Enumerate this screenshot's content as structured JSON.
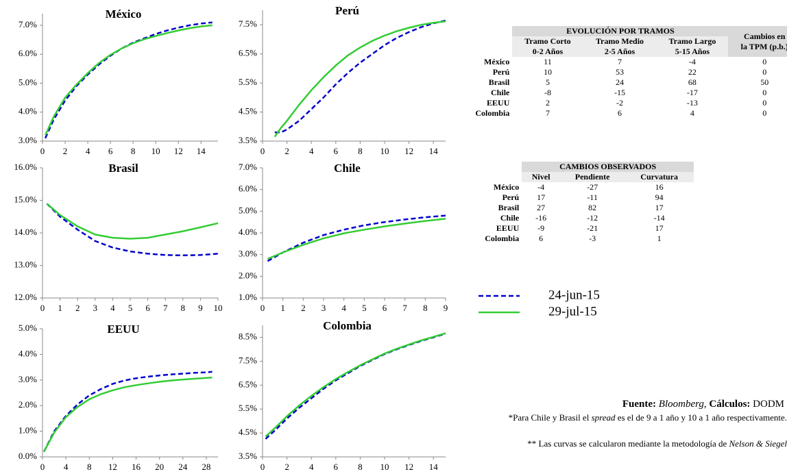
{
  "chart_data": [
    {
      "type": "line",
      "title": "México",
      "xlim": [
        0,
        15.5
      ],
      "xticks": [
        0,
        2,
        4,
        6,
        8,
        10,
        12,
        14
      ],
      "ylim": [
        3,
        7.4
      ],
      "yticks": [
        {
          "value": 3,
          "label": "3.0%"
        },
        {
          "value": 4,
          "label": "4.0%"
        },
        {
          "value": 5,
          "label": "5.0%"
        },
        {
          "value": 6,
          "label": "6.0%"
        },
        {
          "value": 7,
          "label": "7.0%"
        }
      ],
      "x": [
        0.25,
        1,
        2,
        3,
        4,
        5,
        6,
        7,
        8,
        9,
        10,
        11,
        12,
        13,
        14,
        15
      ],
      "series": [
        {
          "name": "24-jun-15",
          "color": "#0000cc",
          "dash": true,
          "values": [
            3.1,
            3.75,
            4.4,
            4.9,
            5.3,
            5.65,
            5.95,
            6.2,
            6.4,
            6.55,
            6.7,
            6.82,
            6.92,
            7.0,
            7.06,
            7.1
          ]
        },
        {
          "name": "29-jul-15",
          "color": "#33cc33",
          "dash": false,
          "values": [
            3.2,
            3.85,
            4.5,
            4.95,
            5.35,
            5.7,
            5.98,
            6.2,
            6.38,
            6.52,
            6.63,
            6.73,
            6.82,
            6.9,
            6.96,
            7.0
          ]
        }
      ]
    },
    {
      "type": "line",
      "title": "Perú",
      "xlim": [
        0,
        15
      ],
      "xticks": [
        0,
        2,
        4,
        6,
        8,
        10,
        12,
        14
      ],
      "ylim": [
        3.5,
        8.0
      ],
      "yticks": [
        {
          "value": 3.5,
          "label": "3.5%"
        },
        {
          "value": 4.5,
          "label": "4.5%"
        },
        {
          "value": 5.5,
          "label": "5.5%"
        },
        {
          "value": 6.5,
          "label": "6.5%"
        },
        {
          "value": 7.5,
          "label": "7.5%"
        }
      ],
      "x": [
        1,
        1.5,
        2,
        3,
        4,
        5,
        6,
        7,
        8,
        9,
        10,
        11,
        12,
        13,
        14,
        15
      ],
      "series": [
        {
          "name": "24-jun-15",
          "color": "#0000cc",
          "dash": true,
          "values": [
            3.8,
            3.8,
            3.9,
            4.2,
            4.6,
            5.0,
            5.45,
            5.85,
            6.2,
            6.5,
            6.8,
            7.05,
            7.25,
            7.42,
            7.55,
            7.65
          ]
        },
        {
          "name": "29-jul-15",
          "color": "#33cc33",
          "dash": false,
          "values": [
            3.65,
            3.95,
            4.2,
            4.75,
            5.25,
            5.7,
            6.1,
            6.45,
            6.72,
            6.95,
            7.13,
            7.28,
            7.4,
            7.5,
            7.57,
            7.62
          ]
        }
      ]
    },
    {
      "type": "line",
      "title": "Brasil",
      "xlim": [
        0,
        10
      ],
      "xticks": [
        0,
        1,
        2,
        3,
        4,
        5,
        6,
        7,
        8,
        9,
        10
      ],
      "ylim": [
        12,
        16
      ],
      "yticks": [
        {
          "value": 12,
          "label": "12.0%"
        },
        {
          "value": 13,
          "label": "13.0%"
        },
        {
          "value": 14,
          "label": "14.0%"
        },
        {
          "value": 15,
          "label": "15.0%"
        },
        {
          "value": 16,
          "label": "16.0%"
        }
      ],
      "x": [
        0.25,
        1,
        2,
        3,
        4,
        5,
        6,
        7,
        8,
        9,
        10
      ],
      "series": [
        {
          "name": "24-jun-15",
          "color": "#0000cc",
          "dash": true,
          "values": [
            14.9,
            14.5,
            14.1,
            13.75,
            13.55,
            13.43,
            13.36,
            13.32,
            13.31,
            13.32,
            13.36
          ]
        },
        {
          "name": "29-jul-15",
          "color": "#33cc33",
          "dash": false,
          "values": [
            14.9,
            14.55,
            14.2,
            13.95,
            13.85,
            13.82,
            13.85,
            13.95,
            14.05,
            14.17,
            14.3
          ]
        }
      ]
    },
    {
      "type": "line",
      "title": "Chile",
      "xlim": [
        0,
        9
      ],
      "xticks": [
        0,
        1,
        2,
        3,
        4,
        5,
        6,
        7,
        8,
        9
      ],
      "ylim": [
        1,
        7
      ],
      "yticks": [
        {
          "value": 1,
          "label": "1.0%"
        },
        {
          "value": 2,
          "label": "2.0%"
        },
        {
          "value": 3,
          "label": "3.0%"
        },
        {
          "value": 4,
          "label": "4.0%"
        },
        {
          "value": 5,
          "label": "5.0%"
        },
        {
          "value": 6,
          "label": "6.0%"
        },
        {
          "value": 7,
          "label": "7.0%"
        }
      ],
      "x": [
        0.25,
        1,
        2,
        3,
        4,
        5,
        6,
        7,
        8,
        9
      ],
      "series": [
        {
          "name": "24-jun-15",
          "color": "#0000cc",
          "dash": true,
          "values": [
            2.7,
            3.1,
            3.55,
            3.9,
            4.15,
            4.35,
            4.5,
            4.62,
            4.72,
            4.8
          ]
        },
        {
          "name": "29-jul-15",
          "color": "#33cc33",
          "dash": false,
          "values": [
            2.8,
            3.1,
            3.45,
            3.75,
            3.98,
            4.15,
            4.3,
            4.43,
            4.55,
            4.65
          ]
        }
      ]
    },
    {
      "type": "line",
      "title": "EEUU",
      "xlim": [
        0,
        30
      ],
      "xticks": [
        0,
        4,
        8,
        12,
        16,
        20,
        24,
        28
      ],
      "ylim": [
        0,
        5
      ],
      "yticks": [
        {
          "value": 0,
          "label": "0.0%"
        },
        {
          "value": 1,
          "label": "1.0%"
        },
        {
          "value": 2,
          "label": "2.0%"
        },
        {
          "value": 3,
          "label": "3.0%"
        },
        {
          "value": 4,
          "label": "4.0%"
        },
        {
          "value": 5,
          "label": "5.0%"
        }
      ],
      "x": [
        0.25,
        2,
        4,
        6,
        8,
        10,
        12,
        14,
        16,
        18,
        20,
        22,
        24,
        26,
        28,
        29
      ],
      "series": [
        {
          "name": "24-jun-15",
          "color": "#0000cc",
          "dash": true,
          "values": [
            0.2,
            1.0,
            1.6,
            2.05,
            2.4,
            2.65,
            2.85,
            2.98,
            3.07,
            3.13,
            3.18,
            3.22,
            3.25,
            3.28,
            3.3,
            3.32
          ]
        },
        {
          "name": "29-jul-15",
          "color": "#33cc33",
          "dash": false,
          "values": [
            0.2,
            0.95,
            1.55,
            1.95,
            2.25,
            2.45,
            2.6,
            2.72,
            2.8,
            2.87,
            2.93,
            2.98,
            3.02,
            3.05,
            3.08,
            3.1
          ]
        }
      ]
    },
    {
      "type": "line",
      "title": "Colombia",
      "xlim": [
        0,
        15
      ],
      "xticks": [
        0,
        2,
        4,
        6,
        8,
        10,
        12,
        14
      ],
      "ylim": [
        3.5,
        9.0
      ],
      "yticks": [
        {
          "value": 3.5,
          "label": "3.5%"
        },
        {
          "value": 4.5,
          "label": "4.5%"
        },
        {
          "value": 5.5,
          "label": "5.5%"
        },
        {
          "value": 6.5,
          "label": "6.5%"
        },
        {
          "value": 7.5,
          "label": "7.5%"
        },
        {
          "value": 8.5,
          "label": "8.5%"
        }
      ],
      "x": [
        0.25,
        1,
        2,
        3,
        4,
        5,
        6,
        7,
        8,
        9,
        10,
        11,
        12,
        13,
        14,
        15
      ],
      "series": [
        {
          "name": "24-jun-15",
          "color": "#0000cc",
          "dash": true,
          "values": [
            4.25,
            4.6,
            5.1,
            5.55,
            5.95,
            6.35,
            6.7,
            7.0,
            7.3,
            7.55,
            7.8,
            8.0,
            8.18,
            8.35,
            8.5,
            8.65
          ]
        },
        {
          "name": "29-jul-15",
          "color": "#33cc33",
          "dash": false,
          "values": [
            4.35,
            4.7,
            5.2,
            5.65,
            6.05,
            6.42,
            6.75,
            7.05,
            7.33,
            7.58,
            7.82,
            8.02,
            8.2,
            8.37,
            8.52,
            8.67
          ]
        }
      ]
    }
  ],
  "tables": [
    {
      "title": "EVOLUCIÓN POR TRAMOS",
      "columns": [
        [
          "Tramo Corto",
          "0-2 Años"
        ],
        [
          "Tramo Medio",
          "2-5 Años"
        ],
        [
          "Tramo Largo",
          "5-15 Años"
        ],
        [
          "Cambios en",
          "la TPM (p.b.)"
        ]
      ],
      "rows": [
        [
          "México",
          11,
          7,
          -4,
          0
        ],
        [
          "Perú",
          10,
          53,
          22,
          0
        ],
        [
          "Brasil",
          5,
          24,
          68,
          50
        ],
        [
          "Chile",
          -8,
          -15,
          -17,
          0
        ],
        [
          "EEUU",
          2,
          -2,
          -13,
          0
        ],
        [
          "Colombia",
          7,
          6,
          4,
          0
        ]
      ]
    },
    {
      "title": "CAMBIOS OBSERVADOS",
      "columns": [
        [
          "Nivel"
        ],
        [
          "Pendiente"
        ],
        [
          "Curvatura"
        ]
      ],
      "rows": [
        [
          "México",
          -4,
          -27,
          16
        ],
        [
          "Perú",
          17,
          -11,
          94
        ],
        [
          "Brasil",
          27,
          82,
          17
        ],
        [
          "Chile",
          -16,
          -12,
          -14
        ],
        [
          "EEUU",
          -9,
          -21,
          17
        ],
        [
          "Colombia",
          6,
          -3,
          1
        ]
      ]
    }
  ],
  "notes": {
    "source": [
      "Fuente:",
      "Bloomberg",
      ", ",
      "Cálculos:",
      "DODM"
    ],
    "spread": [
      "*Para Chile y Brasil el ",
      "spread",
      " es el de 9 a 1 año y 10 a 1 año respectivamente."
    ],
    "method": [
      "** Las curvas se calcularon mediante la metodología de ",
      "Nelson & Siegel"
    ]
  }
}
